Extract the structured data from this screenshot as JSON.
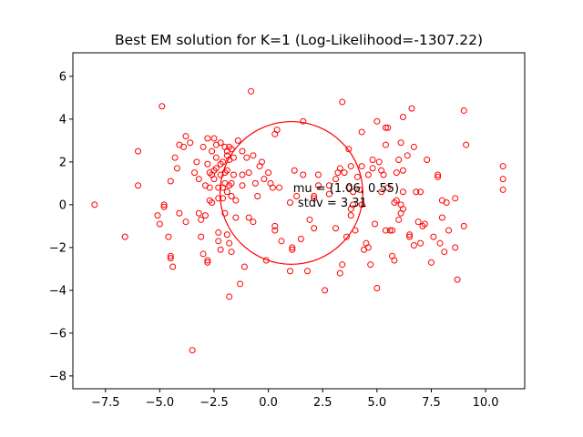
{
  "chart_data": {
    "type": "scatter",
    "title": "Best EM solution for K=1 (Log-Likelihood=-1307.22)",
    "xlabel": "",
    "ylabel": "",
    "xlim": [
      -9.0,
      11.8
    ],
    "ylim": [
      -8.6,
      7.1
    ],
    "xticks": [
      -7.5,
      -5.0,
      -2.5,
      0.0,
      2.5,
      5.0,
      7.5,
      10.0
    ],
    "xtick_labels": [
      "−7.5",
      "−5.0",
      "−2.5",
      "0.0",
      "2.5",
      "5.0",
      "7.5",
      "10.0"
    ],
    "yticks": [
      -8,
      -6,
      -4,
      -2,
      0,
      2,
      4,
      6
    ],
    "ytick_labels": [
      "−8",
      "−6",
      "−4",
      "−2",
      "0",
      "2",
      "4",
      "6"
    ],
    "marker_color": "#ff0000",
    "component": {
      "mu": [
        1.06,
        0.55
      ],
      "stdv": 3.31,
      "color": "#ff0000",
      "annotation_lines": [
        "mu = (1.06, 0.55)",
        "stdv = 3.31"
      ]
    },
    "points": [
      [
        -8.0,
        0.0
      ],
      [
        -6.6,
        -1.5
      ],
      [
        -6.0,
        2.5
      ],
      [
        -6.0,
        0.9
      ],
      [
        -5.1,
        -0.5
      ],
      [
        -5.0,
        -0.9
      ],
      [
        -4.9,
        4.6
      ],
      [
        -4.8,
        0.0
      ],
      [
        -4.8,
        -0.1
      ],
      [
        -4.6,
        -1.5
      ],
      [
        -4.5,
        1.1
      ],
      [
        -4.5,
        -2.4
      ],
      [
        -4.5,
        -2.5
      ],
      [
        -4.4,
        -2.9
      ],
      [
        -4.3,
        2.2
      ],
      [
        -4.2,
        1.7
      ],
      [
        -4.1,
        2.8
      ],
      [
        -4.1,
        -0.4
      ],
      [
        -3.9,
        2.7
      ],
      [
        -3.8,
        3.2
      ],
      [
        -3.8,
        -0.8
      ],
      [
        -3.6,
        2.9
      ],
      [
        -3.5,
        -6.8
      ],
      [
        -3.4,
        1.5
      ],
      [
        -3.3,
        2.0
      ],
      [
        -3.2,
        1.2
      ],
      [
        -3.2,
        -0.4
      ],
      [
        -3.1,
        -0.7
      ],
      [
        -3.1,
        -1.5
      ],
      [
        -3.0,
        2.7
      ],
      [
        -3.0,
        -2.3
      ],
      [
        -2.9,
        0.9
      ],
      [
        -2.9,
        -0.5
      ],
      [
        -2.8,
        3.1
      ],
      [
        -2.8,
        1.9
      ],
      [
        -2.8,
        -2.6
      ],
      [
        -2.8,
        -2.7
      ],
      [
        -2.7,
        1.5
      ],
      [
        -2.7,
        0.8
      ],
      [
        -2.7,
        0.2
      ],
      [
        -2.6,
        2.5
      ],
      [
        -2.6,
        1.4
      ],
      [
        -2.6,
        0.1
      ],
      [
        -2.5,
        3.1
      ],
      [
        -2.5,
        1.6
      ],
      [
        -2.5,
        1.2
      ],
      [
        -2.4,
        2.8
      ],
      [
        -2.4,
        2.2
      ],
      [
        -2.4,
        1.7
      ],
      [
        -2.3,
        0.8
      ],
      [
        -2.3,
        0.3
      ],
      [
        -2.3,
        -1.3
      ],
      [
        -2.3,
        -1.7
      ],
      [
        -2.2,
        2.9
      ],
      [
        -2.2,
        1.9
      ],
      [
        -2.2,
        1.4
      ],
      [
        -2.2,
        -2.1
      ],
      [
        -2.1,
        2.0
      ],
      [
        -2.1,
        0.8
      ],
      [
        -2.1,
        0.3
      ],
      [
        -2.0,
        2.7
      ],
      [
        -2.0,
        1.5
      ],
      [
        -2.0,
        1.0
      ],
      [
        -2.0,
        -0.4
      ],
      [
        -1.9,
        2.5
      ],
      [
        -1.9,
        2.3
      ],
      [
        -1.9,
        1.6
      ],
      [
        -1.9,
        0.6
      ],
      [
        -1.9,
        -1.4
      ],
      [
        -1.8,
        2.7
      ],
      [
        -1.8,
        2.1
      ],
      [
        -1.8,
        0.9
      ],
      [
        -1.8,
        -1.8
      ],
      [
        -1.8,
        -4.3
      ],
      [
        -1.7,
        2.6
      ],
      [
        -1.7,
        1.0
      ],
      [
        -1.7,
        0.4
      ],
      [
        -1.7,
        -2.2
      ],
      [
        -1.6,
        2.2
      ],
      [
        -1.6,
        1.4
      ],
      [
        -1.5,
        0.2
      ],
      [
        -1.5,
        -0.6
      ],
      [
        -1.4,
        3.0
      ],
      [
        -1.3,
        -3.7
      ],
      [
        -1.2,
        2.5
      ],
      [
        -1.2,
        1.4
      ],
      [
        -1.2,
        0.9
      ],
      [
        -1.1,
        -2.9
      ],
      [
        -1.0,
        2.2
      ],
      [
        -0.9,
        1.5
      ],
      [
        -0.9,
        -0.6
      ],
      [
        -0.8,
        5.3
      ],
      [
        -0.7,
        2.3
      ],
      [
        -0.7,
        -0.8
      ],
      [
        -0.6,
        1.0
      ],
      [
        -0.5,
        0.4
      ],
      [
        -0.4,
        1.8
      ],
      [
        -0.3,
        2.0
      ],
      [
        -0.2,
        1.2
      ],
      [
        -0.1,
        -2.6
      ],
      [
        0.0,
        1.5
      ],
      [
        0.1,
        1.0
      ],
      [
        0.2,
        0.8
      ],
      [
        0.3,
        -1.0
      ],
      [
        0.3,
        -1.2
      ],
      [
        0.3,
        3.3
      ],
      [
        0.4,
        3.5
      ],
      [
        0.5,
        0.8
      ],
      [
        0.6,
        -1.7
      ],
      [
        1.0,
        -3.1
      ],
      [
        1.0,
        0.1
      ],
      [
        1.1,
        -2.0
      ],
      [
        1.1,
        -2.1
      ],
      [
        1.2,
        1.6
      ],
      [
        1.3,
        0.4
      ],
      [
        1.5,
        -1.6
      ],
      [
        1.6,
        3.9
      ],
      [
        1.6,
        1.4
      ],
      [
        1.8,
        -3.1
      ],
      [
        1.9,
        -0.7
      ],
      [
        2.1,
        0.4
      ],
      [
        2.1,
        0.3
      ],
      [
        2.1,
        -1.1
      ],
      [
        2.3,
        1.4
      ],
      [
        2.3,
        0.9
      ],
      [
        2.6,
        -4.0
      ],
      [
        2.8,
        0.9
      ],
      [
        2.8,
        0.5
      ],
      [
        3.1,
        -1.1
      ],
      [
        3.1,
        1.2
      ],
      [
        3.2,
        1.5
      ],
      [
        3.3,
        1.7
      ],
      [
        3.3,
        -3.2
      ],
      [
        3.4,
        4.8
      ],
      [
        3.4,
        -2.8
      ],
      [
        3.5,
        1.5
      ],
      [
        3.6,
        -1.5
      ],
      [
        3.7,
        0.8
      ],
      [
        3.7,
        2.6
      ],
      [
        3.8,
        1.8
      ],
      [
        3.8,
        -0.2
      ],
      [
        3.8,
        -0.5
      ],
      [
        3.9,
        0.0
      ],
      [
        3.9,
        0.6
      ],
      [
        4.0,
        -1.2
      ],
      [
        4.1,
        1.3
      ],
      [
        4.2,
        0.7
      ],
      [
        4.3,
        1.8
      ],
      [
        4.3,
        3.4
      ],
      [
        4.3,
        0.0
      ],
      [
        4.4,
        -2.1
      ],
      [
        4.5,
        -1.8
      ],
      [
        4.6,
        1.4
      ],
      [
        4.6,
        -2.0
      ],
      [
        4.7,
        -2.8
      ],
      [
        4.8,
        2.1
      ],
      [
        4.8,
        1.7
      ],
      [
        4.9,
        -0.9
      ],
      [
        5.0,
        -3.9
      ],
      [
        5.0,
        3.9
      ],
      [
        5.1,
        2.0
      ],
      [
        5.2,
        0.6
      ],
      [
        5.2,
        1.6
      ],
      [
        5.3,
        1.4
      ],
      [
        5.4,
        -1.2
      ],
      [
        5.4,
        2.8
      ],
      [
        5.4,
        3.6
      ],
      [
        5.5,
        3.6
      ],
      [
        5.5,
        0.8
      ],
      [
        5.6,
        -1.2
      ],
      [
        5.7,
        -2.4
      ],
      [
        5.7,
        -1.2
      ],
      [
        5.8,
        0.1
      ],
      [
        5.8,
        -2.6
      ],
      [
        5.9,
        1.5
      ],
      [
        5.9,
        0.2
      ],
      [
        6.0,
        2.1
      ],
      [
        6.0,
        -0.7
      ],
      [
        6.1,
        2.9
      ],
      [
        6.1,
        0.0
      ],
      [
        6.1,
        -0.4
      ],
      [
        6.2,
        -0.2
      ],
      [
        6.2,
        0.6
      ],
      [
        6.2,
        1.6
      ],
      [
        6.2,
        4.1
      ],
      [
        6.4,
        2.3
      ],
      [
        6.5,
        -1.5
      ],
      [
        6.5,
        -1.4
      ],
      [
        6.6,
        4.5
      ],
      [
        6.7,
        2.7
      ],
      [
        6.7,
        -1.9
      ],
      [
        6.8,
        0.6
      ],
      [
        6.9,
        -0.8
      ],
      [
        7.0,
        -1.8
      ],
      [
        7.0,
        0.6
      ],
      [
        7.1,
        -1.0
      ],
      [
        7.2,
        -0.9
      ],
      [
        7.3,
        2.1
      ],
      [
        7.5,
        -2.7
      ],
      [
        7.6,
        -1.5
      ],
      [
        7.8,
        1.3
      ],
      [
        7.8,
        1.4
      ],
      [
        7.9,
        -1.8
      ],
      [
        8.0,
        -0.6
      ],
      [
        8.0,
        0.2
      ],
      [
        8.1,
        -2.2
      ],
      [
        8.2,
        0.1
      ],
      [
        8.3,
        -1.2
      ],
      [
        8.6,
        -2.0
      ],
      [
        8.6,
        0.3
      ],
      [
        8.7,
        -3.5
      ],
      [
        9.0,
        4.4
      ],
      [
        9.0,
        -1.0
      ],
      [
        9.1,
        2.8
      ],
      [
        10.8,
        1.8
      ],
      [
        10.8,
        1.2
      ],
      [
        10.8,
        0.7
      ]
    ]
  }
}
